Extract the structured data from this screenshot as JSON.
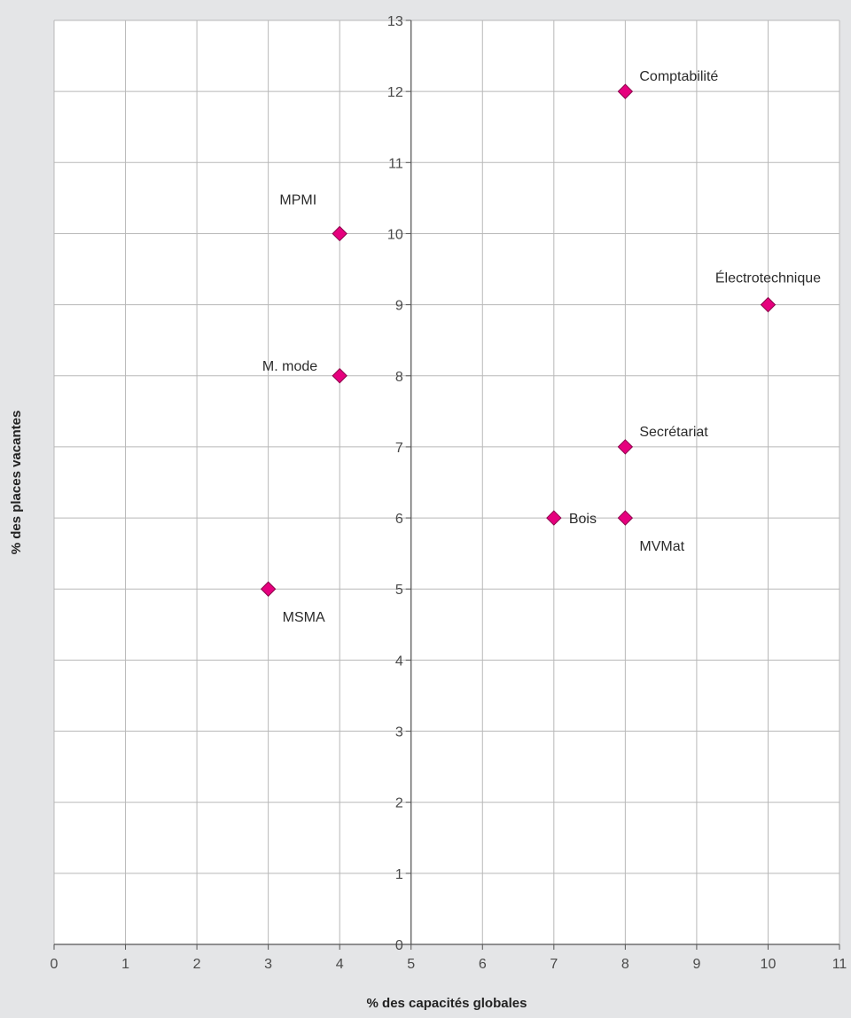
{
  "chart_data": {
    "type": "scatter",
    "title": "",
    "xlabel": "% des capacités globales",
    "ylabel": "% des places vacantes",
    "xlim": [
      0,
      11
    ],
    "ylim": [
      0,
      13
    ],
    "x_ticks": [
      0,
      1,
      2,
      3,
      4,
      5,
      6,
      7,
      8,
      9,
      10,
      11
    ],
    "y_ticks": [
      0,
      1,
      2,
      3,
      4,
      5,
      6,
      7,
      8,
      9,
      10,
      11,
      12,
      13
    ],
    "grid": true,
    "y_axis_crosses_x_at": 5,
    "marker": "diamond",
    "marker_color": "#e6007e",
    "points": [
      {
        "label": "Comptabilité",
        "x": 8,
        "y": 12,
        "label_position": "upper-right"
      },
      {
        "label": "MPMI",
        "x": 4,
        "y": 10,
        "label_position": "upper-left"
      },
      {
        "label": "Électrotechnique",
        "x": 10,
        "y": 9,
        "label_position": "above"
      },
      {
        "label": "M. mode",
        "x": 4,
        "y": 8,
        "label_position": "left"
      },
      {
        "label": "Secrétariat",
        "x": 8,
        "y": 7,
        "label_position": "upper-right"
      },
      {
        "label": "Bois",
        "x": 7,
        "y": 6,
        "label_position": "right"
      },
      {
        "label": "MVMat",
        "x": 8,
        "y": 6,
        "label_position": "lower-right"
      },
      {
        "label": "MSMA",
        "x": 3,
        "y": 5,
        "label_position": "lower-right"
      }
    ]
  }
}
